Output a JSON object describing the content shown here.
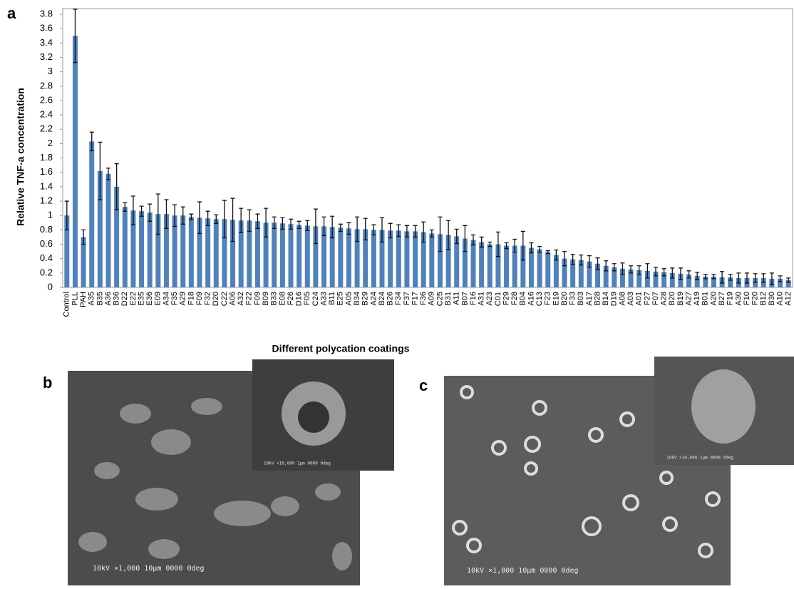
{
  "chart_data": {
    "type": "bar",
    "y_label": "Relative TNF-a concentration",
    "x_label": "Different polycation coatings",
    "categories": [
      "Control",
      "PLL",
      "PAH",
      "A35",
      "B35",
      "A36",
      "B36",
      "D22",
      "E22",
      "E35",
      "E36",
      "E09",
      "A34",
      "F35",
      "A29",
      "F18",
      "F09",
      "F32",
      "D20",
      "C22",
      "A06",
      "A32",
      "F22",
      "F09",
      "B09",
      "B33",
      "E08",
      "F26",
      "D16",
      "F05",
      "C24",
      "A33",
      "B11",
      "E25",
      "A05",
      "B34",
      "B29",
      "A24",
      "B24",
      "B26",
      "F34",
      "F37",
      "F17",
      "F36",
      "A09",
      "C25",
      "B31",
      "A11",
      "B07",
      "F16",
      "A31",
      "A23",
      "C01",
      "F29",
      "F28",
      "B04",
      "A16",
      "C13",
      "F23",
      "E19",
      "B20",
      "F33",
      "B03",
      "A17",
      "B28",
      "B14",
      "D19",
      "A08",
      "A03",
      "A01",
      "F27",
      "F07",
      "A28",
      "B20",
      "B19",
      "A27",
      "A19",
      "B01",
      "A20",
      "B27",
      "F19",
      "A30",
      "F10",
      "F20",
      "B12",
      "B30",
      "A10",
      "A12"
    ],
    "values": [
      1.0,
      3.5,
      0.7,
      2.03,
      1.62,
      1.58,
      1.4,
      1.12,
      1.07,
      1.06,
      1.04,
      1.02,
      1.02,
      1.0,
      1.0,
      0.98,
      0.97,
      0.96,
      0.95,
      0.95,
      0.94,
      0.93,
      0.93,
      0.92,
      0.9,
      0.9,
      0.89,
      0.88,
      0.87,
      0.86,
      0.85,
      0.85,
      0.84,
      0.83,
      0.82,
      0.81,
      0.81,
      0.8,
      0.8,
      0.79,
      0.79,
      0.78,
      0.78,
      0.77,
      0.75,
      0.74,
      0.73,
      0.71,
      0.68,
      0.66,
      0.63,
      0.6,
      0.6,
      0.58,
      0.58,
      0.58,
      0.55,
      0.53,
      0.49,
      0.45,
      0.4,
      0.39,
      0.38,
      0.36,
      0.33,
      0.3,
      0.28,
      0.26,
      0.25,
      0.24,
      0.23,
      0.22,
      0.21,
      0.2,
      0.19,
      0.18,
      0.16,
      0.15,
      0.15,
      0.14,
      0.14,
      0.13,
      0.13,
      0.13,
      0.13,
      0.12,
      0.12,
      0.1
    ],
    "errors": [
      0.2,
      0.37,
      0.1,
      0.13,
      0.4,
      0.08,
      0.32,
      0.06,
      0.2,
      0.07,
      0.12,
      0.28,
      0.2,
      0.15,
      0.12,
      0.04,
      0.22,
      0.1,
      0.06,
      0.26,
      0.3,
      0.17,
      0.15,
      0.1,
      0.2,
      0.08,
      0.08,
      0.07,
      0.05,
      0.07,
      0.24,
      0.13,
      0.15,
      0.05,
      0.08,
      0.17,
      0.15,
      0.07,
      0.17,
      0.1,
      0.08,
      0.08,
      0.08,
      0.14,
      0.05,
      0.24,
      0.2,
      0.1,
      0.18,
      0.07,
      0.07,
      0.03,
      0.17,
      0.04,
      0.09,
      0.2,
      0.07,
      0.04,
      0.02,
      0.07,
      0.1,
      0.07,
      0.07,
      0.08,
      0.08,
      0.07,
      0.05,
      0.08,
      0.05,
      0.06,
      0.1,
      0.06,
      0.05,
      0.07,
      0.08,
      0.05,
      0.05,
      0.03,
      0.03,
      0.08,
      0.04,
      0.07,
      0.07,
      0.06,
      0.06,
      0.08,
      0.04,
      0.03
    ],
    "color": "#4f81bd",
    "ylim": [
      0,
      3.88
    ],
    "yticks": [
      0,
      0.2,
      0.4,
      0.6,
      0.8,
      1,
      1.2,
      1.4,
      1.6,
      1.8,
      2,
      2.2,
      2.4,
      2.6,
      2.8,
      3,
      3.2,
      3.4,
      3.6,
      3.8
    ]
  },
  "panels": {
    "a": "a",
    "b": "b",
    "c": "c",
    "b_caption": "10kV  ×1,000  10µm 0000 0deg",
    "b_inset_caption": "10kV ×10,000  1µm 0000 0deg",
    "c_caption": "10kV  ×1,000  10µm 0000 0deg",
    "c_inset_caption": "10kV ×10,000  1µm 0000 0deg"
  }
}
